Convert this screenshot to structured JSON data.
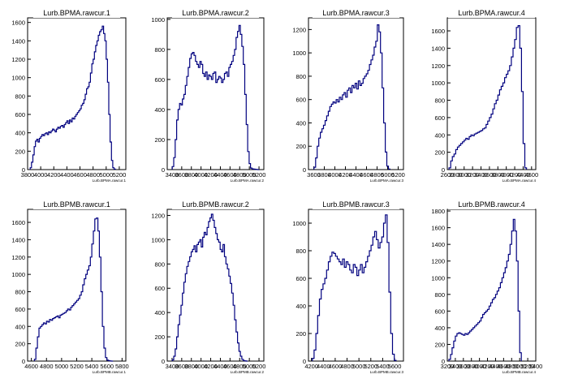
{
  "colors": {
    "hist": "#00007f",
    "axis": "#000000",
    "bg": "#ffffff"
  },
  "chart_data": [
    {
      "type": "histogram",
      "title": "Lurb.BPMA.rawcur.1",
      "xlabel": "Lurb.BPMA.rawcur.1",
      "xlim": [
        3800,
        5300
      ],
      "ylim": [
        0,
        1650
      ],
      "xticks": [
        3800,
        4000,
        4200,
        4400,
        4600,
        4800,
        5000,
        5200
      ],
      "yticks": [
        0,
        200,
        400,
        600,
        800,
        1000,
        1200,
        1400,
        1600
      ],
      "x": [
        3850,
        3870,
        3890,
        3910,
        3930,
        3950,
        3970,
        3990,
        4010,
        4030,
        4050,
        4070,
        4090,
        4110,
        4130,
        4150,
        4170,
        4190,
        4210,
        4230,
        4250,
        4270,
        4290,
        4310,
        4330,
        4350,
        4370,
        4390,
        4410,
        4430,
        4450,
        4470,
        4490,
        4510,
        4530,
        4550,
        4570,
        4590,
        4610,
        4630,
        4650,
        4670,
        4690,
        4710,
        4730,
        4750,
        4770,
        4790,
        4810,
        4830,
        4850,
        4870,
        4890,
        4910,
        4930,
        4950,
        4970,
        4990,
        5010,
        5030,
        5050,
        5070,
        5090,
        5110,
        5130
      ],
      "values": [
        20,
        80,
        160,
        250,
        310,
        330,
        300,
        340,
        360,
        380,
        370,
        390,
        400,
        380,
        410,
        400,
        420,
        440,
        430,
        410,
        440,
        460,
        450,
        470,
        480,
        460,
        490,
        510,
        530,
        500,
        540,
        520,
        560,
        550,
        580,
        600,
        620,
        640,
        660,
        700,
        720,
        760,
        820,
        880,
        900,
        950,
        1050,
        1150,
        1200,
        1280,
        1350,
        1400,
        1460,
        1500,
        1520,
        1560,
        1480,
        1400,
        1200,
        950,
        600,
        300,
        100,
        20,
        5
      ]
    },
    {
      "type": "histogram",
      "title": "Lurb.BPMA.rawcur.2",
      "xlabel": "Lurb.BPMA.rawcur.2",
      "xlim": [
        3300,
        5300
      ],
      "ylim": [
        0,
        1010
      ],
      "xticks": [
        3400,
        3600,
        3800,
        4000,
        4200,
        4400,
        4600,
        4800,
        5000,
        5200
      ],
      "yticks": [
        0,
        200,
        400,
        600,
        800,
        1000
      ],
      "x": [
        3420,
        3450,
        3480,
        3510,
        3540,
        3570,
        3600,
        3630,
        3660,
        3690,
        3720,
        3750,
        3780,
        3810,
        3840,
        3870,
        3900,
        3930,
        3960,
        3990,
        4020,
        4050,
        4080,
        4110,
        4140,
        4170,
        4200,
        4230,
        4260,
        4290,
        4320,
        4350,
        4380,
        4410,
        4440,
        4470,
        4500,
        4530,
        4560,
        4590,
        4620,
        4650,
        4680,
        4710,
        4740,
        4770,
        4800,
        4830,
        4860,
        4890,
        4920,
        4950,
        4980,
        5010,
        5040,
        5070,
        5100,
        5130,
        5160,
        5190
      ],
      "values": [
        20,
        80,
        200,
        330,
        400,
        440,
        430,
        470,
        500,
        560,
        620,
        680,
        740,
        770,
        780,
        760,
        720,
        700,
        680,
        720,
        700,
        640,
        620,
        650,
        600,
        630,
        620,
        600,
        640,
        650,
        580,
        600,
        620,
        610,
        580,
        600,
        640,
        650,
        620,
        680,
        700,
        720,
        760,
        800,
        880,
        920,
        960,
        900,
        820,
        700,
        500,
        300,
        120,
        40,
        10,
        5,
        3,
        2,
        1,
        0
      ]
    },
    {
      "type": "histogram",
      "title": "Lurb.BPMA.rawcur.3",
      "xlabel": "Lurb.BPMA.rawcur.3",
      "xlim": [
        3500,
        5300
      ],
      "ylim": [
        0,
        1300
      ],
      "xticks": [
        3600,
        3800,
        4000,
        4200,
        4400,
        4600,
        4800,
        5000,
        5200
      ],
      "yticks": [
        0,
        200,
        400,
        600,
        800,
        1000,
        1200
      ],
      "x": [
        3620,
        3650,
        3680,
        3710,
        3740,
        3770,
        3800,
        3830,
        3860,
        3890,
        3920,
        3950,
        3980,
        4010,
        4040,
        4070,
        4100,
        4130,
        4160,
        4190,
        4220,
        4250,
        4280,
        4310,
        4340,
        4370,
        4400,
        4430,
        4460,
        4490,
        4520,
        4550,
        4580,
        4610,
        4640,
        4670,
        4700,
        4730,
        4760,
        4790,
        4820,
        4850,
        4880,
        4910,
        4940,
        4970,
        5000,
        5030
      ],
      "values": [
        20,
        100,
        200,
        270,
        320,
        350,
        380,
        420,
        460,
        500,
        540,
        560,
        580,
        570,
        600,
        580,
        620,
        600,
        640,
        660,
        620,
        680,
        700,
        660,
        720,
        700,
        740,
        690,
        760,
        720,
        740,
        780,
        800,
        820,
        850,
        900,
        940,
        980,
        1050,
        1100,
        1240,
        1180,
        1000,
        700,
        400,
        150,
        30,
        5
      ]
    },
    {
      "type": "histogram",
      "title": "Lurb.BPMA.rawcur.4",
      "xlabel": "Lurb.BPMA.rawcur.4",
      "xlim": [
        2600,
        4700
      ],
      "ylim": [
        0,
        1750
      ],
      "xticks": [
        2600,
        2800,
        3000,
        3200,
        3400,
        3600,
        3800,
        4000,
        4200,
        4400,
        4600
      ],
      "yticks": [
        0,
        200,
        400,
        600,
        800,
        1000,
        1200,
        1400,
        1600
      ],
      "x": [
        2660,
        2700,
        2740,
        2780,
        2820,
        2860,
        2900,
        2940,
        2980,
        3020,
        3060,
        3100,
        3140,
        3180,
        3220,
        3260,
        3300,
        3340,
        3380,
        3420,
        3460,
        3500,
        3540,
        3580,
        3620,
        3660,
        3700,
        3740,
        3780,
        3820,
        3860,
        3900,
        3940,
        3980,
        4020,
        4060,
        4100,
        4140,
        4180,
        4220,
        4260,
        4300,
        4340,
        4380,
        4420,
        4460
      ],
      "values": [
        20,
        100,
        150,
        180,
        230,
        260,
        280,
        300,
        320,
        340,
        360,
        350,
        380,
        400,
        390,
        410,
        420,
        430,
        440,
        450,
        470,
        480,
        520,
        560,
        600,
        640,
        700,
        760,
        800,
        860,
        920,
        960,
        1000,
        1060,
        1100,
        1140,
        1200,
        1300,
        1400,
        1500,
        1640,
        1660,
        1400,
        900,
        300,
        20
      ]
    },
    {
      "type": "histogram",
      "title": "Lurb.BPMB.rawcur.1",
      "xlabel": "Lurb.BPMB.rawcur.1",
      "xlim": [
        4550,
        5850
      ],
      "ylim": [
        0,
        1750
      ],
      "xticks": [
        4600,
        4800,
        5000,
        5200,
        5400,
        5600,
        5800
      ],
      "yticks": [
        0,
        200,
        400,
        600,
        800,
        1000,
        1200,
        1400,
        1600
      ],
      "x": [
        4650,
        4670,
        4690,
        4710,
        4730,
        4750,
        4770,
        4790,
        4810,
        4830,
        4850,
        4870,
        4890,
        4910,
        4930,
        4950,
        4970,
        4990,
        5010,
        5030,
        5050,
        5070,
        5090,
        5110,
        5130,
        5150,
        5170,
        5190,
        5210,
        5230,
        5250,
        5270,
        5290,
        5310,
        5330,
        5350,
        5370,
        5390,
        5410,
        5430,
        5450,
        5470,
        5490,
        5510,
        5530,
        5550,
        5570,
        5590,
        5610,
        5630,
        5650,
        5670
      ],
      "values": [
        20,
        150,
        280,
        380,
        400,
        420,
        440,
        430,
        460,
        450,
        480,
        470,
        490,
        500,
        510,
        520,
        500,
        530,
        540,
        550,
        560,
        580,
        600,
        590,
        620,
        640,
        660,
        680,
        700,
        720,
        760,
        800,
        880,
        950,
        1000,
        1050,
        1100,
        1200,
        1350,
        1500,
        1640,
        1650,
        1500,
        1200,
        800,
        400,
        150,
        40,
        10,
        5,
        2,
        0
      ]
    },
    {
      "type": "histogram",
      "title": "Lurb.BPMB.rawcur.2",
      "xlabel": "Lurb.BPMB.rawcur.2",
      "xlim": [
        3300,
        5300
      ],
      "ylim": [
        0,
        1250
      ],
      "xticks": [
        3400,
        3600,
        3800,
        4000,
        4200,
        4400,
        4600,
        4800,
        5000,
        5200
      ],
      "yticks": [
        0,
        200,
        400,
        600,
        800,
        1000,
        1200
      ],
      "x": [
        3420,
        3450,
        3480,
        3510,
        3540,
        3570,
        3600,
        3630,
        3660,
        3690,
        3720,
        3750,
        3780,
        3810,
        3840,
        3870,
        3900,
        3930,
        3960,
        3990,
        4020,
        4050,
        4080,
        4110,
        4140,
        4170,
        4200,
        4230,
        4260,
        4290,
        4320,
        4350,
        4380,
        4410,
        4440,
        4470,
        4500,
        4530,
        4560,
        4590,
        4620,
        4650,
        4680,
        4710,
        4740,
        4770,
        4800,
        4830,
        4860,
        4890,
        4920,
        4950
      ],
      "values": [
        10,
        40,
        100,
        200,
        300,
        380,
        460,
        560,
        650,
        720,
        780,
        820,
        860,
        900,
        920,
        950,
        900,
        960,
        980,
        1000,
        940,
        1020,
        1060,
        1040,
        1100,
        1150,
        1180,
        1210,
        1160,
        1100,
        1050,
        1000,
        980,
        920,
        900,
        960,
        860,
        800,
        760,
        700,
        640,
        560,
        460,
        340,
        240,
        150,
        80,
        40,
        15,
        5,
        2,
        0
      ]
    },
    {
      "type": "histogram",
      "title": "Lurb.BPMB.rawcur.3",
      "xlabel": "Lurb.BPMB.rawcur.3",
      "xlim": [
        4150,
        5750
      ],
      "ylim": [
        0,
        1100
      ],
      "xticks": [
        4200,
        4400,
        4600,
        4800,
        5000,
        5200,
        5400,
        5600
      ],
      "yticks": [
        0,
        200,
        400,
        600,
        800,
        1000
      ],
      "x": [
        4230,
        4260,
        4290,
        4320,
        4350,
        4380,
        4410,
        4440,
        4470,
        4500,
        4530,
        4560,
        4590,
        4620,
        4650,
        4680,
        4710,
        4740,
        4770,
        4800,
        4830,
        4860,
        4890,
        4920,
        4950,
        4980,
        5010,
        5040,
        5070,
        5100,
        5130,
        5160,
        5190,
        5220,
        5250,
        5280,
        5310,
        5340,
        5370,
        5400,
        5430,
        5460,
        5490,
        5520,
        5550,
        5580,
        5610
      ],
      "values": [
        20,
        80,
        200,
        330,
        450,
        520,
        560,
        600,
        660,
        720,
        760,
        790,
        780,
        760,
        740,
        720,
        700,
        740,
        680,
        720,
        700,
        660,
        640,
        700,
        680,
        620,
        660,
        700,
        640,
        680,
        720,
        760,
        800,
        840,
        900,
        940,
        880,
        820,
        860,
        900,
        1000,
        1060,
        860,
        500,
        200,
        50,
        5
      ]
    },
    {
      "type": "histogram",
      "title": "Lurb.BPMB.rawcur.4",
      "xlabel": "Lurb.BPMB.rawcur.4",
      "xlim": [
        3200,
        5400
      ],
      "ylim": [
        0,
        1820
      ],
      "xticks": [
        3200,
        3400,
        3600,
        3800,
        4000,
        4200,
        4400,
        4600,
        4800,
        5000,
        5200,
        5400
      ],
      "yticks": [
        0,
        200,
        400,
        600,
        800,
        1000,
        1200,
        1400,
        1600,
        1800
      ],
      "x": [
        3260,
        3300,
        3340,
        3380,
        3420,
        3460,
        3500,
        3540,
        3580,
        3620,
        3660,
        3700,
        3740,
        3780,
        3820,
        3860,
        3900,
        3940,
        3980,
        4020,
        4060,
        4100,
        4140,
        4180,
        4220,
        4260,
        4300,
        4340,
        4380,
        4420,
        4460,
        4500,
        4540,
        4580,
        4620,
        4660,
        4700,
        4740,
        4780,
        4820,
        4860,
        4900,
        4940,
        4980,
        5020
      ],
      "values": [
        20,
        80,
        160,
        240,
        300,
        330,
        340,
        330,
        320,
        310,
        330,
        320,
        340,
        360,
        380,
        400,
        420,
        440,
        460,
        480,
        520,
        560,
        580,
        600,
        620,
        660,
        700,
        740,
        760,
        800,
        840,
        880,
        940,
        1000,
        1060,
        1120,
        1200,
        1280,
        1400,
        1560,
        1700,
        1560,
        1200,
        600,
        100
      ]
    }
  ]
}
